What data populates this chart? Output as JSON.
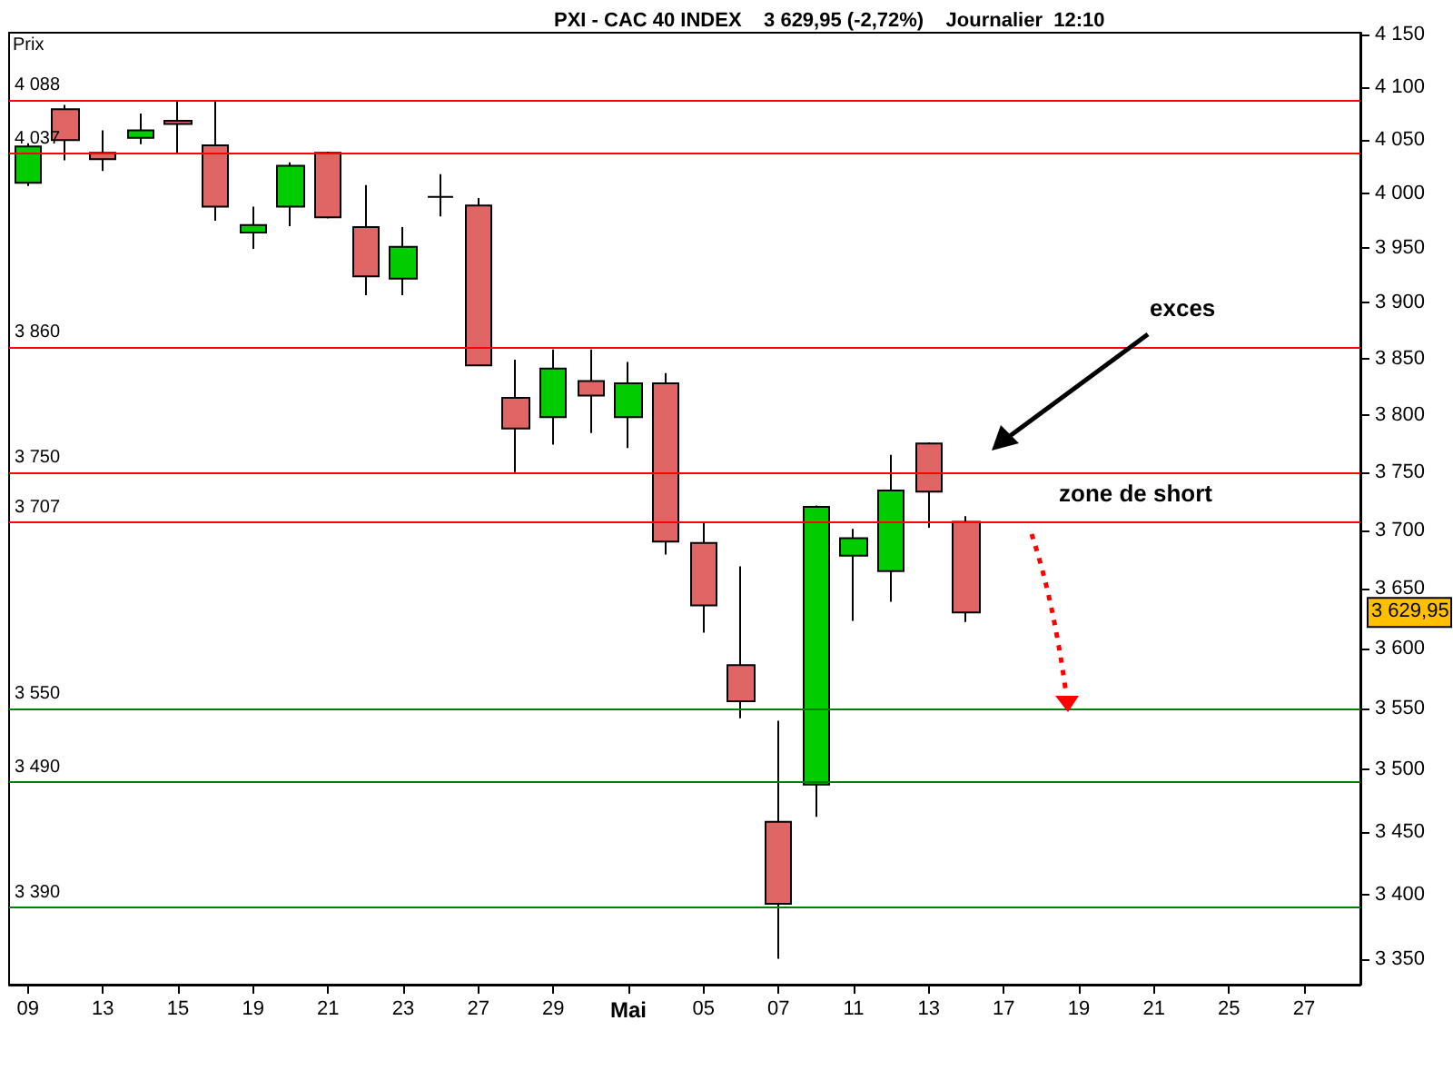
{
  "chart_data": {
    "type": "candlestick",
    "title": "PXI - CAC 40 INDEX    3 629,95 (-2,72%)    Journalier  12:10",
    "ylabel": "Prix",
    "categories": [
      "09",
      null,
      "13",
      null,
      "15",
      null,
      "19",
      null,
      "21",
      null,
      "23",
      null,
      "27",
      null,
      "29",
      null,
      "Mai",
      null,
      "05",
      null,
      "07",
      null,
      "11",
      null,
      "13",
      null,
      "17",
      null,
      "19",
      null,
      "21",
      null,
      "25",
      null,
      "27",
      null
    ],
    "ohlc": [
      [
        4010,
        4047,
        4007,
        4044
      ],
      [
        4079,
        4083,
        4031,
        4050
      ],
      [
        4038,
        4059,
        4021,
        4032
      ],
      [
        4052,
        4075,
        4046,
        4059
      ],
      [
        4068,
        4086,
        4038,
        4065
      ],
      [
        4045,
        4087,
        3975,
        3988
      ],
      [
        3964,
        3988,
        3949,
        3971
      ],
      [
        3988,
        4029,
        3970,
        4026
      ],
      [
        4038,
        4039,
        3977,
        3978
      ],
      [
        3969,
        4008,
        3907,
        3924
      ],
      [
        3922,
        3969,
        3907,
        3951
      ],
      [
        3997,
        4018,
        3979,
        3997
      ],
      [
        3989,
        3996,
        3843,
        3844
      ],
      [
        3815,
        3849,
        3750,
        3788
      ],
      [
        3798,
        3858,
        3774,
        3841
      ],
      [
        3830,
        3858,
        3784,
        3817
      ],
      [
        3798,
        3847,
        3771,
        3828
      ],
      [
        3828,
        3837,
        3679,
        3690
      ],
      [
        3689,
        3706,
        3613,
        3636
      ],
      [
        3586,
        3669,
        3542,
        3556
      ],
      [
        3458,
        3540,
        3350,
        3393
      ],
      [
        3488,
        3721,
        3462,
        3720
      ],
      [
        3678,
        3701,
        3623,
        3693
      ],
      [
        3665,
        3765,
        3639,
        3734
      ],
      [
        3775,
        3776,
        3702,
        3733
      ],
      [
        3707,
        3712,
        3622,
        3629.95
      ],
      null,
      null,
      null,
      null,
      null,
      null,
      null,
      null,
      null,
      null
    ],
    "colors": [
      "#00cc00",
      "#e06666",
      "#e06666",
      "#00cc00",
      "#e06666",
      "#e06666",
      "#00cc00",
      "#00cc00",
      "#e06666",
      "#e06666",
      "#00cc00",
      "#000000",
      "#e06666",
      "#e06666",
      "#00cc00",
      "#e06666",
      "#00cc00",
      "#e06666",
      "#e06666",
      "#e06666",
      "#e06666",
      "#00cc00",
      "#00cc00",
      "#00cc00",
      "#e06666",
      "#e06666",
      null,
      null,
      null,
      null,
      null,
      null,
      null,
      null,
      null,
      null
    ],
    "log": true,
    "ylim": [
      3330,
      4152
    ],
    "yticks": [
      {
        "value": 3350,
        "label": "3 350"
      },
      {
        "value": 3400,
        "label": "3 400"
      },
      {
        "value": 3450,
        "label": "3 450"
      },
      {
        "value": 3500,
        "label": "3 500"
      },
      {
        "value": 3550,
        "label": "3 550"
      },
      {
        "value": 3600,
        "label": "3 600"
      },
      {
        "value": 3650,
        "label": "3 650"
      },
      {
        "value": 3700,
        "label": "3 700"
      },
      {
        "value": 3750,
        "label": "3 750"
      },
      {
        "value": 3800,
        "label": "3 800"
      },
      {
        "value": 3850,
        "label": "3 850"
      },
      {
        "value": 3900,
        "label": "3 900"
      },
      {
        "value": 3950,
        "label": "3 950"
      },
      {
        "value": 4000,
        "label": "4 000"
      },
      {
        "value": 4050,
        "label": "4 050"
      },
      {
        "value": 4100,
        "label": "4 100"
      },
      {
        "value": 4150,
        "label": "4 150"
      }
    ],
    "ref_lines": [
      {
        "axis": "y",
        "value": 4088,
        "label": "4 088",
        "color": "#ff0000"
      },
      {
        "axis": "y",
        "value": 4037,
        "label": "4 037",
        "color": "#ff0000"
      },
      {
        "axis": "y",
        "value": 3860,
        "label": "3 860",
        "color": "#ff0000"
      },
      {
        "axis": "y",
        "value": 3750,
        "label": "3 750",
        "color": "#ff0000"
      },
      {
        "axis": "y",
        "value": 3707,
        "label": "3 707",
        "color": "#ff0000"
      },
      {
        "axis": "y",
        "value": 3550,
        "label": "3 550",
        "color": "#008000"
      },
      {
        "axis": "y",
        "value": 3490,
        "label": "3 490",
        "color": "#008000"
      },
      {
        "axis": "y",
        "value": 3390,
        "label": "3 390",
        "color": "#008000"
      }
    ],
    "annotations": [
      "exces",
      "zone de short",
      "3 629,95"
    ],
    "grid": false
  }
}
